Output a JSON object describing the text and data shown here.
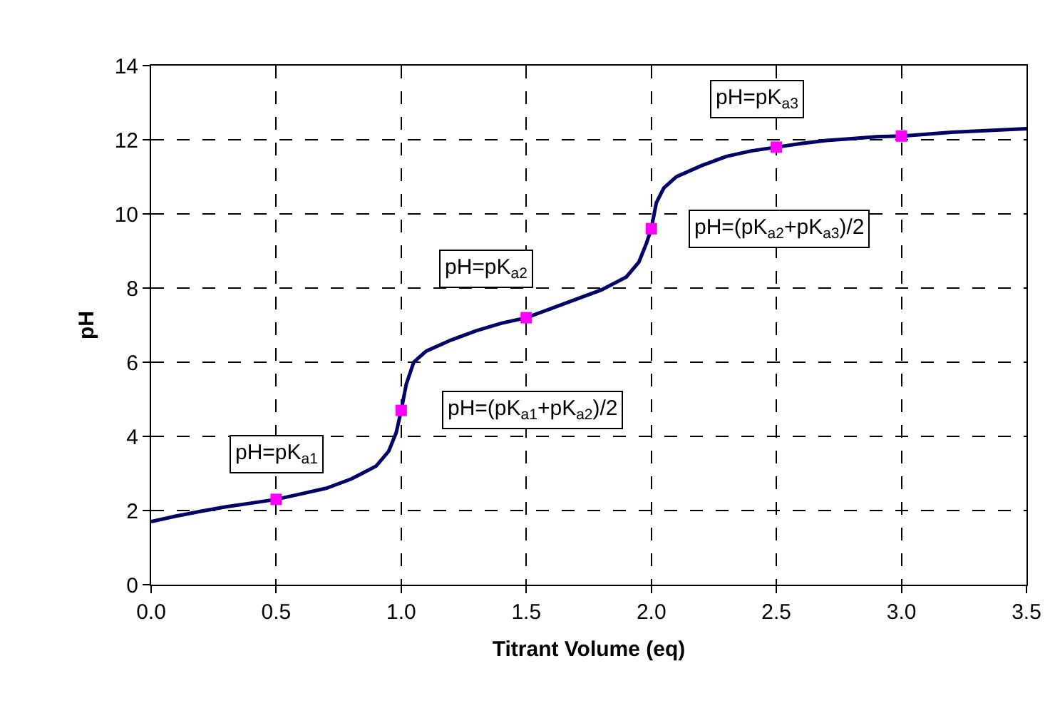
{
  "chart_data": {
    "type": "line",
    "xlabel": "Titrant Volume (eq)",
    "ylabel": "pH",
    "xlim": [
      0,
      3.5
    ],
    "xticks": [
      {
        "value": 0,
        "label": "0.0"
      },
      {
        "value": 0.5,
        "label": "0.5"
      },
      {
        "value": 1,
        "label": "1.0"
      },
      {
        "value": 1.5,
        "label": "1.5"
      },
      {
        "value": 2,
        "label": "2.0"
      },
      {
        "value": 2.5,
        "label": "2.5"
      },
      {
        "value": 3,
        "label": "3.0"
      },
      {
        "value": 3.5,
        "label": "3.5"
      }
    ],
    "ylim": [
      0,
      14
    ],
    "yticks": [
      0,
      2,
      4,
      6,
      8,
      10,
      12,
      14
    ],
    "grid": true,
    "marker": "none",
    "line_style": "solid",
    "series": [
      {
        "type": "line",
        "color": "#000066",
        "x": [
          0,
          0.1,
          0.2,
          0.3,
          0.4,
          0.5,
          0.6,
          0.7,
          0.8,
          0.9,
          0.95,
          0.98,
          1.0,
          1.02,
          1.05,
          1.1,
          1.2,
          1.3,
          1.4,
          1.5,
          1.6,
          1.7,
          1.8,
          1.9,
          1.95,
          1.98,
          2.0,
          2.02,
          2.05,
          2.1,
          2.2,
          2.3,
          2.4,
          2.5,
          2.6,
          2.7,
          2.8,
          2.9,
          3.0,
          3.2,
          3.5
        ],
        "values": [
          1.7,
          1.85,
          1.98,
          2.1,
          2.2,
          2.3,
          2.45,
          2.6,
          2.85,
          3.2,
          3.6,
          4.1,
          4.7,
          5.4,
          6.0,
          6.3,
          6.6,
          6.85,
          7.05,
          7.2,
          7.45,
          7.7,
          7.95,
          8.3,
          8.7,
          9.2,
          9.6,
          10.3,
          10.7,
          11.0,
          11.3,
          11.55,
          11.7,
          11.8,
          11.9,
          11.98,
          12.03,
          12.08,
          12.1,
          12.2,
          12.3
        ]
      },
      {
        "type": "scatter",
        "marker": "square",
        "color": "#ff00ff",
        "x": [
          0.5,
          1.0,
          1.5,
          2.0,
          2.5,
          3.0
        ],
        "values": [
          2.3,
          4.7,
          7.2,
          9.6,
          11.8,
          12.1
        ]
      }
    ],
    "annotations": [
      {
        "text": "pH=pK$_{a1}$",
        "x": 0.5,
        "y": 2.3
      },
      {
        "text": "pH=(pK$_{a1}$+pK$_{a2}$)/2",
        "x": 1.0,
        "y": 4.7
      },
      {
        "text": "pH=pK$_{a2}$",
        "x": 1.5,
        "y": 7.2
      },
      {
        "text": "pH=(pK$_{a2}$+pK$_{a3}$)/2",
        "x": 2.0,
        "y": 9.6
      },
      {
        "text": "pH=pK$_{a3}$",
        "x": 2.5,
        "y": 11.8
      }
    ]
  }
}
